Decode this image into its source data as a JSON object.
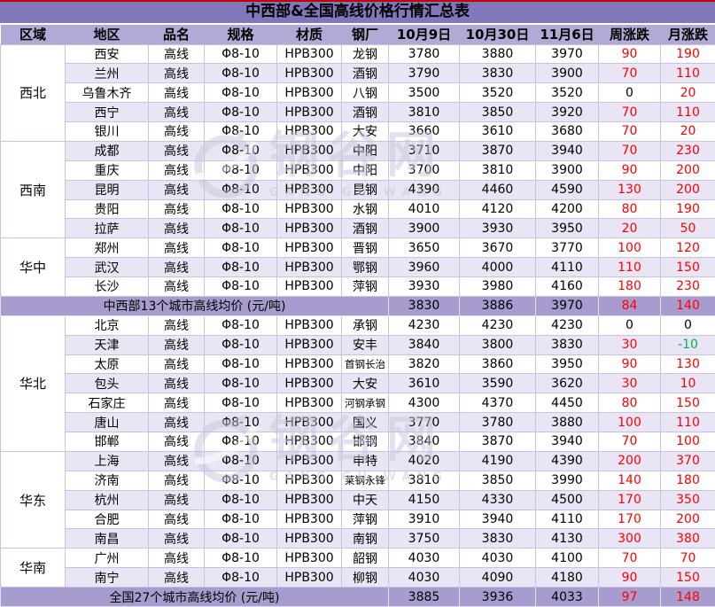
{
  "title": "中西部&全国高线价格行情汇总表",
  "colors": {
    "top_line": "#C00000",
    "title_bg": "#8277BA",
    "header_bg": "#B3A9D6",
    "row_white": "#FFFFFF",
    "row_alt": "#EAE5F5",
    "summary_bg": "#A89CCE",
    "grid_border": "#C9C0E5",
    "up": "#FF0000",
    "down": "#00B050"
  },
  "watermark": {
    "cn": "钢谷网",
    "en": "GANG GU WANG"
  },
  "chart_data": {
    "type": "table",
    "title": "中西部&全国高线价格行情汇总表",
    "columns": [
      "区域",
      "地区",
      "品名",
      "规格",
      "材质",
      "钢厂",
      "10月9日",
      "10月30日",
      "11月6日",
      "周涨跌",
      "月涨跌"
    ],
    "sections": [
      {
        "kind": "region",
        "region": "西北",
        "rows": [
          [
            "西安",
            "高线",
            "Φ8-10",
            "HPB300",
            "龙钢",
            3780,
            3880,
            3970,
            90,
            190
          ],
          [
            "兰州",
            "高线",
            "Φ8-10",
            "HPB300",
            "酒钢",
            3790,
            3830,
            3900,
            70,
            110
          ],
          [
            "乌鲁木齐",
            "高线",
            "Φ8-10",
            "HPB300",
            "八钢",
            3500,
            3520,
            3520,
            0,
            20
          ],
          [
            "西宁",
            "高线",
            "Φ8-10",
            "HPB300",
            "酒钢",
            3810,
            3850,
            3920,
            70,
            110
          ],
          [
            "银川",
            "高线",
            "Φ8-10",
            "HPB300",
            "大安",
            3660,
            3610,
            3680,
            70,
            20
          ]
        ]
      },
      {
        "kind": "region",
        "region": "西南",
        "rows": [
          [
            "成都",
            "高线",
            "Φ8-10",
            "HPB300",
            "中阳",
            3710,
            3870,
            3940,
            70,
            230
          ],
          [
            "重庆",
            "高线",
            "Φ8-10",
            "HPB300",
            "中阳",
            3700,
            3810,
            3900,
            90,
            200
          ],
          [
            "昆明",
            "高线",
            "Φ8-10",
            "HPB300",
            "昆钢",
            4390,
            4460,
            4590,
            130,
            200
          ],
          [
            "贵阳",
            "高线",
            "Φ8-10",
            "HPB300",
            "水钢",
            4010,
            4120,
            4200,
            80,
            190
          ],
          [
            "拉萨",
            "高线",
            "Φ8-10",
            "HPB300",
            "酒钢",
            3900,
            3930,
            3950,
            20,
            50
          ]
        ]
      },
      {
        "kind": "region",
        "region": "华中",
        "rows": [
          [
            "郑州",
            "高线",
            "Φ8-10",
            "HPB300",
            "晋钢",
            3650,
            3670,
            3770,
            100,
            120
          ],
          [
            "武汉",
            "高线",
            "Φ8-10",
            "HPB300",
            "鄂钢",
            3960,
            4000,
            4110,
            110,
            150
          ],
          [
            "长沙",
            "高线",
            "Φ8-10",
            "HPB300",
            "萍钢",
            3930,
            3980,
            4160,
            180,
            230
          ]
        ]
      },
      {
        "kind": "summary",
        "label": "中西部13个城市高线均价 (元/吨)",
        "values": [
          3830,
          3886,
          3970,
          84,
          140
        ]
      },
      {
        "kind": "region",
        "region": "华北",
        "rows": [
          [
            "北京",
            "高线",
            "Φ8-10",
            "HPB300",
            "承钢",
            4230,
            4230,
            4230,
            0,
            0
          ],
          [
            "天津",
            "高线",
            "Φ8-10",
            "HPB300",
            "安丰",
            3840,
            3800,
            3830,
            30,
            -10
          ],
          [
            "太原",
            "高线",
            "Φ8-10",
            "HPB300",
            "首钢长治",
            3820,
            3860,
            3950,
            90,
            130
          ],
          [
            "包头",
            "高线",
            "Φ8-10",
            "HPB300",
            "大安",
            3610,
            3590,
            3620,
            30,
            10
          ],
          [
            "石家庄",
            "高线",
            "Φ8-10",
            "HPB300",
            "河钢承钢",
            4300,
            4370,
            4450,
            80,
            150
          ],
          [
            "唐山",
            "高线",
            "Φ8-10",
            "HPB300",
            "国义",
            3770,
            3780,
            3880,
            100,
            110
          ],
          [
            "邯郸",
            "高线",
            "Φ8-10",
            "HPB300",
            "邯钢",
            3840,
            3870,
            3940,
            70,
            100
          ]
        ]
      },
      {
        "kind": "region",
        "region": "华东",
        "rows": [
          [
            "上海",
            "高线",
            "Φ8-10",
            "HPB300",
            "申特",
            4020,
            4190,
            4390,
            200,
            370
          ],
          [
            "济南",
            "高线",
            "Φ8-10",
            "HPB300",
            "莱钢永锋",
            3810,
            3850,
            3990,
            140,
            180
          ],
          [
            "杭州",
            "高线",
            "Φ8-10",
            "HPB300",
            "中天",
            4150,
            4330,
            4500,
            170,
            350
          ],
          [
            "合肥",
            "高线",
            "Φ8-10",
            "HPB300",
            "萍钢",
            3910,
            3940,
            4110,
            170,
            200
          ],
          [
            "南昌",
            "高线",
            "Φ8-10",
            "HPB300",
            "南钢",
            3750,
            3830,
            4130,
            300,
            380
          ]
        ]
      },
      {
        "kind": "region",
        "region": "华南",
        "rows": [
          [
            "广州",
            "高线",
            "Φ8-10",
            "HPB300",
            "韶钢",
            4030,
            4030,
            4100,
            70,
            70
          ],
          [
            "南宁",
            "高线",
            "Φ8-10",
            "HPB300",
            "柳钢",
            4030,
            4090,
            4180,
            90,
            150
          ]
        ]
      },
      {
        "kind": "summary",
        "label": "全国27个城市高线均价 (元/吨)",
        "values": [
          3885,
          3936,
          4033,
          97,
          148
        ]
      }
    ]
  }
}
